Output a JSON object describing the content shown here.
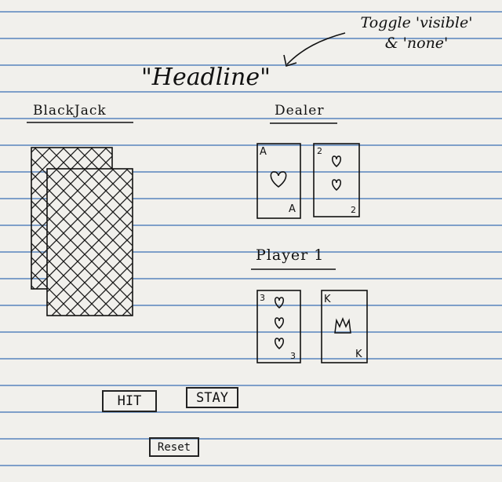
{
  "annotation": {
    "line1": "Toggle 'visible'",
    "line2": "& 'none'"
  },
  "headline": "\"Headline\"",
  "game_title": "BlackJack",
  "dealer": {
    "label": "Dealer",
    "cards": [
      {
        "rank": "A",
        "pips": 1,
        "suit": "heart"
      },
      {
        "rank": "2",
        "pips": 2,
        "suit": "heart"
      }
    ]
  },
  "player": {
    "label": "Player 1",
    "cards": [
      {
        "rank": "3",
        "pips": 3,
        "suit": "heart"
      },
      {
        "rank": "K",
        "pips": 1,
        "suit": "crown"
      }
    ]
  },
  "buttons": {
    "hit": "HIT",
    "stay": "STAY",
    "reset": "Reset"
  },
  "colors": {
    "paper": "#f1f0ec",
    "rule_line": "#7e9fc9",
    "ink": "#111111"
  }
}
